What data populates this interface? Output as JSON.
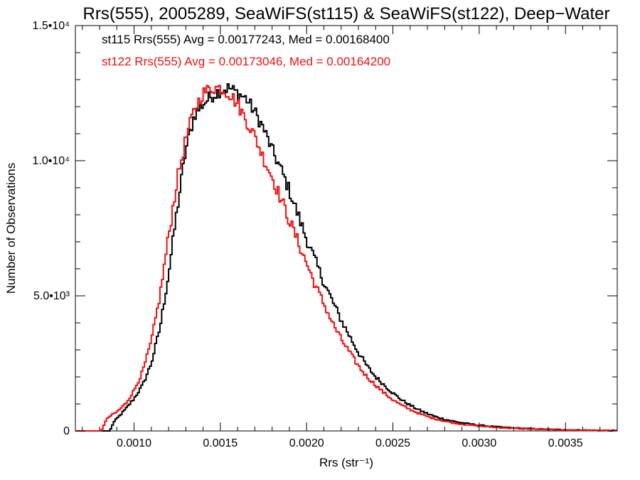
{
  "chart_data": {
    "type": "line",
    "title": "Rrs(555), 2005289, SeaWiFS(st115) & SeaWiFS(st122), Deep−Water",
    "xlabel": "Rrs (str⁻¹)",
    "ylabel": "Number of Observations",
    "xlim": [
      0.00066,
      0.0038
    ],
    "ylim": [
      0,
      15000
    ],
    "xticks": [
      {
        "value": 0.001,
        "label": "0.0010"
      },
      {
        "value": 0.0015,
        "label": "0.0015"
      },
      {
        "value": 0.002,
        "label": "0.0020"
      },
      {
        "value": 0.0025,
        "label": "0.0025"
      },
      {
        "value": 0.003,
        "label": "0.0030"
      },
      {
        "value": 0.0035,
        "label": "0.0035"
      }
    ],
    "yticks": [
      {
        "value": 0,
        "label": "0"
      },
      {
        "value": 5000,
        "label": "5.0•10³"
      },
      {
        "value": 10000,
        "label": "1.0•10⁴"
      },
      {
        "value": 15000,
        "label": "1.5•10⁴"
      }
    ],
    "grid": false,
    "annotations": [
      {
        "text": "st115 Rrs(555) Avg = 0.00177243, Med = 0.00168400",
        "color": "#000000"
      },
      {
        "text": "st122 Rrs(555) Avg = 0.00173046, Med = 0.00164200",
        "color": "#ee1111"
      }
    ],
    "series": [
      {
        "color": "#000000",
        "points": [
          [
            0.00066,
            0
          ],
          [
            0.00086,
            0
          ],
          [
            0.00088,
            300
          ],
          [
            0.0009,
            450
          ],
          [
            0.00095,
            800
          ],
          [
            0.001,
            1200
          ],
          [
            0.00105,
            1700
          ],
          [
            0.0011,
            2500
          ],
          [
            0.00115,
            3800
          ],
          [
            0.0012,
            5800
          ],
          [
            0.00125,
            8200
          ],
          [
            0.0013,
            10400
          ],
          [
            0.00135,
            11700
          ],
          [
            0.0014,
            12100
          ],
          [
            0.00145,
            12400
          ],
          [
            0.0015,
            12600
          ],
          [
            0.00155,
            12700
          ],
          [
            0.0016,
            12500
          ],
          [
            0.00165,
            12300
          ],
          [
            0.0017,
            11800
          ],
          [
            0.00175,
            11200
          ],
          [
            0.0018,
            10400
          ],
          [
            0.00185,
            9700
          ],
          [
            0.0019,
            8900
          ],
          [
            0.00195,
            8000
          ],
          [
            0.002,
            7100
          ],
          [
            0.00205,
            6300
          ],
          [
            0.0021,
            5500
          ],
          [
            0.00215,
            4800
          ],
          [
            0.0022,
            4100
          ],
          [
            0.00225,
            3500
          ],
          [
            0.0023,
            2900
          ],
          [
            0.00235,
            2400
          ],
          [
            0.0024,
            2000
          ],
          [
            0.00245,
            1700
          ],
          [
            0.0025,
            1400
          ],
          [
            0.00255,
            1150
          ],
          [
            0.0026,
            950
          ],
          [
            0.00265,
            780
          ],
          [
            0.0027,
            640
          ],
          [
            0.00275,
            520
          ],
          [
            0.0028,
            430
          ],
          [
            0.00285,
            360
          ],
          [
            0.0029,
            300
          ],
          [
            0.003,
            210
          ],
          [
            0.0031,
            150
          ],
          [
            0.0032,
            110
          ],
          [
            0.0033,
            80
          ],
          [
            0.0034,
            60
          ],
          [
            0.0035,
            40
          ],
          [
            0.0036,
            30
          ],
          [
            0.0037,
            20
          ],
          [
            0.0038,
            12
          ]
        ]
      },
      {
        "color": "#ee1111",
        "points": [
          [
            0.00066,
            0
          ],
          [
            0.00081,
            0
          ],
          [
            0.00083,
            300
          ],
          [
            0.00085,
            500
          ],
          [
            0.0009,
            700
          ],
          [
            0.00095,
            1000
          ],
          [
            0.001,
            1500
          ],
          [
            0.00105,
            2200
          ],
          [
            0.0011,
            3300
          ],
          [
            0.00115,
            5000
          ],
          [
            0.0012,
            7200
          ],
          [
            0.00125,
            9300
          ],
          [
            0.0013,
            10800
          ],
          [
            0.00135,
            11900
          ],
          [
            0.0014,
            12500
          ],
          [
            0.00145,
            12700
          ],
          [
            0.0015,
            12700
          ],
          [
            0.00155,
            12500
          ],
          [
            0.0016,
            12100
          ],
          [
            0.00165,
            11500
          ],
          [
            0.0017,
            10900
          ],
          [
            0.00175,
            10100
          ],
          [
            0.0018,
            9400
          ],
          [
            0.00185,
            8600
          ],
          [
            0.0019,
            7800
          ],
          [
            0.00195,
            7000
          ],
          [
            0.002,
            6200
          ],
          [
            0.00205,
            5400
          ],
          [
            0.0021,
            4700
          ],
          [
            0.00215,
            4000
          ],
          [
            0.0022,
            3400
          ],
          [
            0.00225,
            2900
          ],
          [
            0.0023,
            2400
          ],
          [
            0.00235,
            2000
          ],
          [
            0.0024,
            1700
          ],
          [
            0.00245,
            1400
          ],
          [
            0.0025,
            1150
          ],
          [
            0.00255,
            950
          ],
          [
            0.0026,
            790
          ],
          [
            0.00265,
            650
          ],
          [
            0.0027,
            530
          ],
          [
            0.00275,
            440
          ],
          [
            0.0028,
            360
          ],
          [
            0.00285,
            300
          ],
          [
            0.0029,
            250
          ],
          [
            0.003,
            180
          ],
          [
            0.0031,
            130
          ],
          [
            0.0032,
            95
          ],
          [
            0.0033,
            70
          ],
          [
            0.0034,
            50
          ],
          [
            0.0035,
            35
          ],
          [
            0.0036,
            25
          ],
          [
            0.0037,
            16
          ],
          [
            0.0038,
            10
          ]
        ]
      }
    ]
  }
}
